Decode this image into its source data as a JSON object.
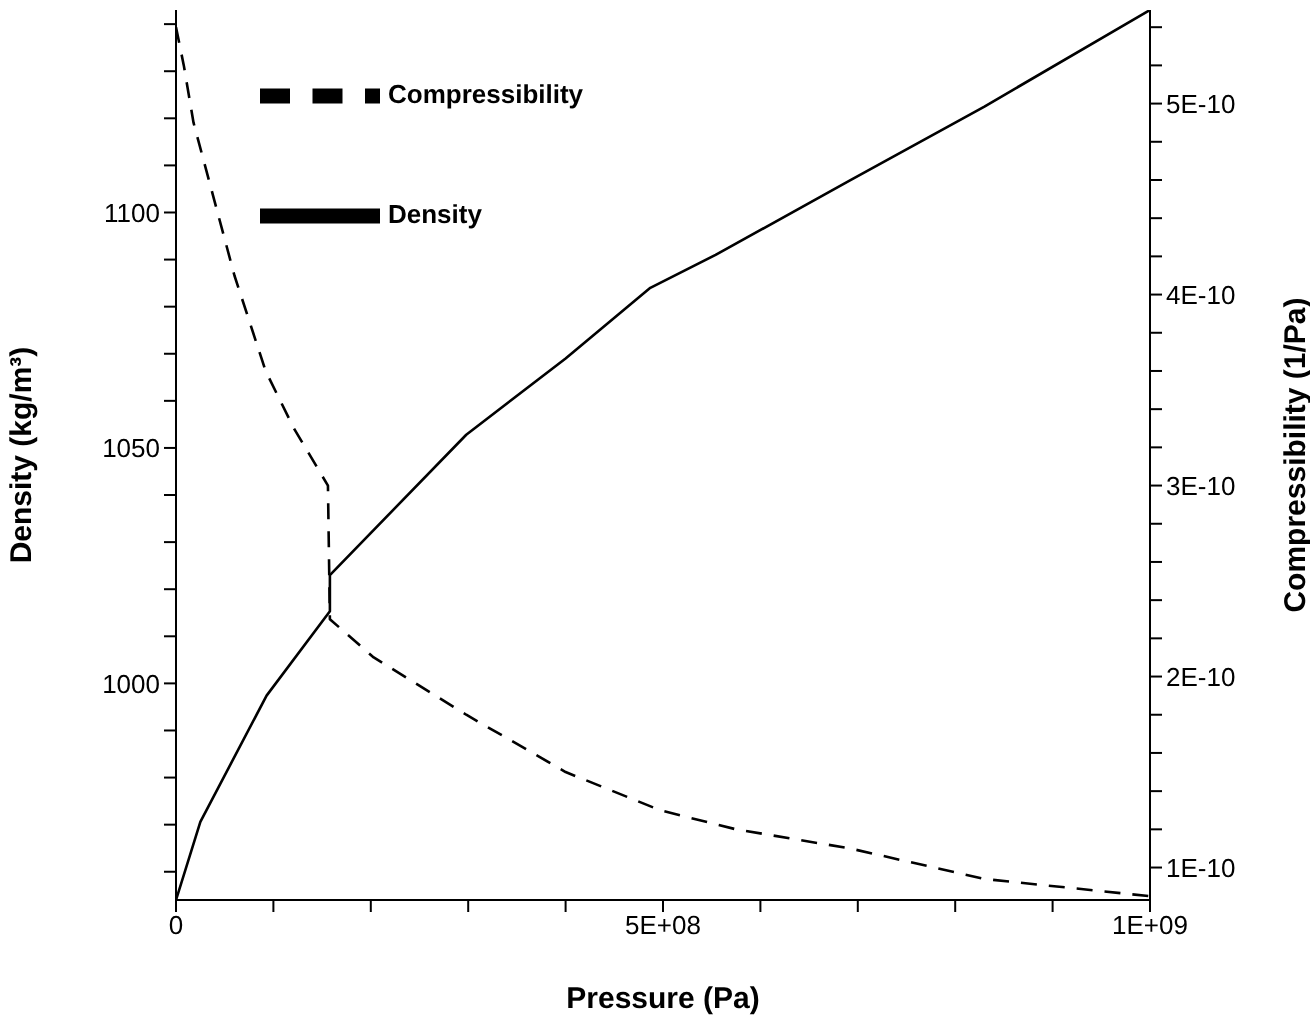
{
  "chart_data": {
    "type": "line",
    "xlabel": "Pressure (Pa)",
    "ylabel": "Density (kg/m³)",
    "y2label": "Compressibility (1/Pa)",
    "xlim": [
      0,
      1000000000.0
    ],
    "xticks": [
      0,
      {
        "value": 100000000.0,
        "label": null
      },
      {
        "value": 200000000.0,
        "label": null
      },
      {
        "value": 300000000.0,
        "label": null
      },
      {
        "value": 400000000.0,
        "label": null
      },
      {
        "value": 500000000.0,
        "label": "5E+08"
      },
      {
        "value": 600000000.0,
        "label": null
      },
      {
        "value": 700000000.0,
        "label": null
      },
      {
        "value": 800000000.0,
        "label": null
      },
      {
        "value": 900000000.0,
        "label": null
      },
      {
        "value": 1000000000.0,
        "label": "1E+09"
      }
    ],
    "ylim": [
      954,
      1143
    ],
    "yticks": [
      {
        "value": 960,
        "label": null
      },
      {
        "value": 970,
        "label": null
      },
      {
        "value": 980,
        "label": null
      },
      {
        "value": 990,
        "label": null
      },
      1000,
      {
        "value": 1010,
        "label": null
      },
      {
        "value": 1020,
        "label": null
      },
      {
        "value": 1030,
        "label": null
      },
      {
        "value": 1040,
        "label": null
      },
      1050,
      {
        "value": 1060,
        "label": null
      },
      {
        "value": 1070,
        "label": null
      },
      {
        "value": 1080,
        "label": null
      },
      {
        "value": 1090,
        "label": null
      },
      1100,
      {
        "value": 1110,
        "label": null
      },
      {
        "value": 1120,
        "label": null
      },
      {
        "value": 1130,
        "label": null
      },
      {
        "value": 1140,
        "label": null
      }
    ],
    "y2lim": [
      8.3e-11,
      5.49e-10
    ],
    "y2ticks": [
      {
        "value": 1e-10,
        "label": "1E-10"
      },
      {
        "value": 1.2e-10,
        "label": null
      },
      {
        "value": 1.4e-10,
        "label": null
      },
      {
        "value": 1.6e-10,
        "label": null
      },
      {
        "value": 1.8e-10,
        "label": null
      },
      {
        "value": 2e-10,
        "label": "2E-10"
      },
      {
        "value": 2.2e-10,
        "label": null
      },
      {
        "value": 2.4e-10,
        "label": null
      },
      {
        "value": 2.6e-10,
        "label": null
      },
      {
        "value": 2.8e-10,
        "label": null
      },
      {
        "value": 3e-10,
        "label": "3E-10"
      },
      {
        "value": 3.2e-10,
        "label": null
      },
      {
        "value": 3.4e-10,
        "label": null
      },
      {
        "value": 3.6e-10,
        "label": null
      },
      {
        "value": 3.8e-10,
        "label": null
      },
      {
        "value": 4e-10,
        "label": "4E-10"
      },
      {
        "value": 4.2e-10,
        "label": null
      },
      {
        "value": 4.4e-10,
        "label": null
      },
      {
        "value": 4.6e-10,
        "label": null
      },
      {
        "value": 4.8e-10,
        "label": null
      },
      {
        "value": 5e-10,
        "label": "5E-10"
      },
      {
        "value": 5.2e-10,
        "label": null
      },
      {
        "value": 5.4e-10,
        "label": null
      }
    ],
    "legend": "top left",
    "marker": "none",
    "series": [
      {
        "name": "Density",
        "color": "#000000",
        "line_style": "solid",
        "x": [
          0,
          25000000.0,
          93000000.0,
          158000000.0,
          158000000.0,
          298000000.0,
          400000000.0,
          487000000.0,
          554000000.0,
          692000000.0,
          830000000.0,
          1000000000.0
        ],
        "values": [
          954,
          970.6,
          997.4,
          1015.3,
          1023,
          1052.8,
          1069,
          1084,
          1091,
          1106.8,
          1122.5,
          1143
        ]
      },
      {
        "name": "Compressibility",
        "color": "#000000",
        "line_style": "dashed",
        "axis": "y2",
        "x": [
          0,
          8000000.0,
          18000000.0,
          39000000.0,
          60000000.0,
          92000000.0,
          121000000.0,
          156000000.0,
          158000000.0,
          203000000.0,
          298000000.0,
          400000000.0,
          497000000.0,
          575000000.0,
          692000000.0,
          830000000.0,
          1000000000.0
        ],
        "values": [
          5.4e-10,
          5.2e-10,
          4.9e-10,
          4.5e-10,
          4.1e-10,
          3.6e-10,
          3.3e-10,
          3e-10,
          2.3e-10,
          2.1e-10,
          1.8e-10,
          1.5e-10,
          1.3e-10,
          1.2e-10,
          1.1e-10,
          9.4e-11,
          8.5e-11
        ]
      }
    ]
  }
}
